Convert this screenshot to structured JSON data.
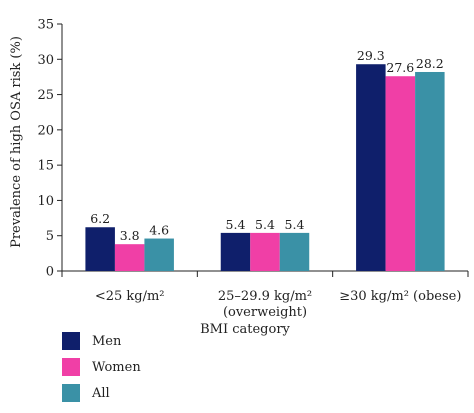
{
  "chart_data": {
    "type": "bar",
    "ylabel": "Prevalence of high OSA risk (%)",
    "xlabel": "BMI category",
    "ylim": [
      0,
      35
    ],
    "yticks": [
      0,
      5,
      10,
      15,
      20,
      25,
      30,
      35
    ],
    "categories": [
      {
        "lines": [
          "<25 kg/m²"
        ]
      },
      {
        "lines": [
          "25–29.9 kg/m²",
          "(overweight)"
        ]
      },
      {
        "lines": [
          "≥30 kg/m² (obese)"
        ]
      }
    ],
    "series": [
      {
        "name": "Men",
        "color": "#0f1f6b",
        "values": [
          6.2,
          5.4,
          29.3
        ],
        "labels": [
          "6.2",
          "5.4",
          "29.3"
        ]
      },
      {
        "name": "Women",
        "color": "#f03fa6",
        "values": [
          3.8,
          5.4,
          27.6
        ],
        "labels": [
          "3.8",
          "5.4",
          "27.6"
        ]
      },
      {
        "name": "All",
        "color": "#3a91a6",
        "values": [
          4.6,
          5.4,
          28.2
        ],
        "labels": [
          "4.6",
          "5.4",
          "28.2"
        ]
      }
    ]
  }
}
